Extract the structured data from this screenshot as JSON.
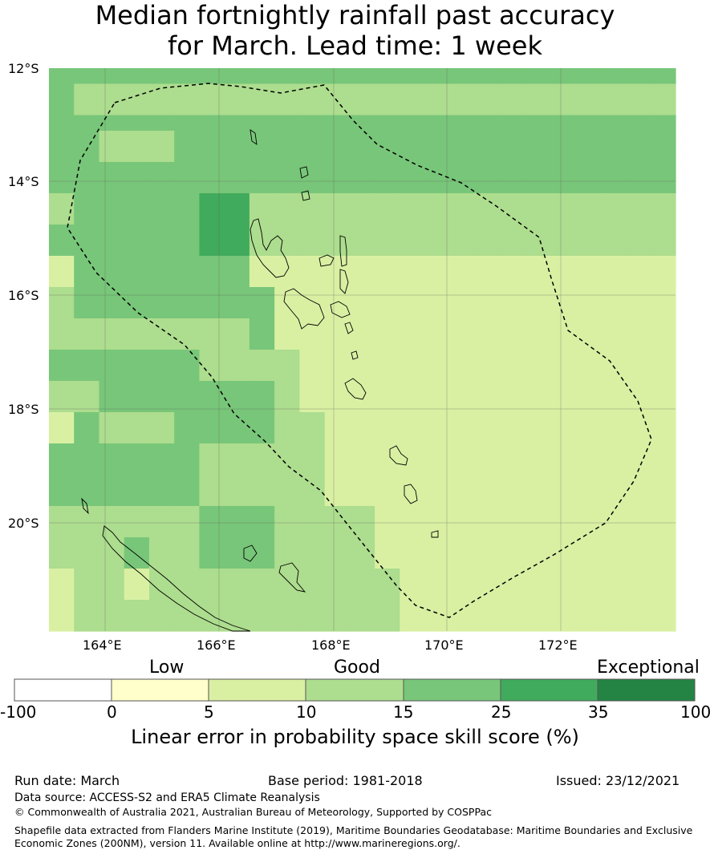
{
  "title_line1": "Median fortnightly rainfall past accuracy",
  "title_line2": "for March. Lead time: 1 week",
  "lat_labels": [
    "12°S",
    "14°S",
    "16°S",
    "18°S",
    "20°S"
  ],
  "lon_labels": [
    "164°E",
    "166°E",
    "168°E",
    "170°E",
    "172°E"
  ],
  "legend": {
    "categories": [
      "Low",
      "Good",
      "Exceptional"
    ],
    "ticks": [
      "-100",
      "0",
      "5",
      "10",
      "15",
      "25",
      "35",
      "100"
    ],
    "colors": [
      "#ffffff",
      "#ffffcc",
      "#d9f0a3",
      "#addd8e",
      "#78c679",
      "#41ab5d",
      "#238443"
    ],
    "label": "Linear error in probability space skill score (%)"
  },
  "grid_colors": {
    "1": "#ffffcc",
    "2": "#d9f0a3",
    "3": "#addd8e",
    "4": "#78c679",
    "5": "#41ab5d"
  },
  "grid": [
    "4444444444444444444444444",
    "4333333333333333333333333",
    "4333333333333333333333333",
    "4444444444444444444444444",
    "4433344444444444444444444",
    "4433344444444444444444444",
    "4444444444444444444444444",
    "4444444444444444444444444",
    "3444445533333333333333333",
    "3444445533333333333333333",
    "4444445533333333333333333",
    "4444445533333333333333333",
    "2444444422222222222222222",
    "2444444422222222222222222",
    "3444444442222222222222222",
    "3444444442222222222222222",
    "3333333342222222222222222",
    "3333333342222222222222222",
    "4444443333222222222222222",
    "4444443333222222222222222",
    "3344444443222222222222222",
    "3344444443222222222222222",
    "2433344443322222222222222",
    "2433344443322222222222222",
    "4444443333322222222222222",
    "4444443333322222222222222",
    "4444443333322222222222222",
    "4444443333322222222222222",
    "3333334443333222222222222",
    "3333334443333222222222222",
    "3334334443333222222222222",
    "3334334443333222222222222",
    "2332333333333322222222222",
    "2332333333333322222222222",
    "2333333333333322222222222",
    "2333333333333322222222222"
  ],
  "footer": {
    "run_date": "Run date: March",
    "base_period": "Base period: 1981-2018",
    "issued": "Issued: 23/12/2021",
    "data_source": "Data source: ACCESS-S2 and ERA5 Climate Reanalysis",
    "copyright": "© Commonwealth of Australia 2021, Australian Bureau of Meteorology, Supported by COSPPac",
    "shapefile_1": "Shapefile data extracted from Flanders Marine Institute (2019), Maritime Boundaries Geodatabase: Maritime Boundaries and Exclusive",
    "shapefile_2": "Economic Zones (200NM), version 11. Available online at http://www.marineregions.org/."
  }
}
